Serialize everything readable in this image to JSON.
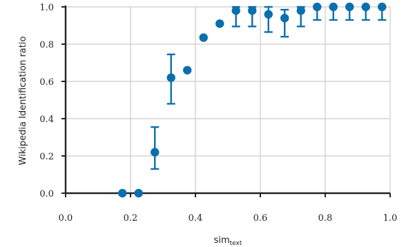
{
  "chart_data": {
    "type": "scatter",
    "title": "",
    "xlabel_main": "sim",
    "xlabel_sub": "text",
    "ylabel": "Wikipedia Identification ratio",
    "xlim": [
      0.0,
      1.0
    ],
    "ylim": [
      0.0,
      1.0
    ],
    "xticks": [
      "0.0",
      "0.2",
      "0.4",
      "0.6",
      "0.8",
      "1.0"
    ],
    "yticks": [
      "0.0",
      "0.2",
      "0.4",
      "0.6",
      "0.8",
      "1.0"
    ],
    "grid": true,
    "color": "#0b6fad",
    "points": [
      {
        "x": 0.175,
        "y": 0.0
      },
      {
        "x": 0.225,
        "y": 0.0
      },
      {
        "x": 0.275,
        "y": 0.22,
        "err_low": 0.13,
        "err_high": 0.355
      },
      {
        "x": 0.325,
        "y": 0.62,
        "err_low": 0.48,
        "err_high": 0.745
      },
      {
        "x": 0.375,
        "y": 0.66
      },
      {
        "x": 0.425,
        "y": 0.835
      },
      {
        "x": 0.475,
        "y": 0.91
      },
      {
        "x": 0.525,
        "y": 0.98,
        "err_low": 0.895,
        "err_high": 1.0
      },
      {
        "x": 0.575,
        "y": 0.98,
        "err_low": 0.895,
        "err_high": 1.0
      },
      {
        "x": 0.625,
        "y": 0.96,
        "err_low": 0.865,
        "err_high": 1.0
      },
      {
        "x": 0.675,
        "y": 0.94,
        "err_low": 0.84,
        "err_high": 0.985
      },
      {
        "x": 0.725,
        "y": 0.98,
        "err_low": 0.895,
        "err_high": 1.0
      },
      {
        "x": 0.775,
        "y": 1.0,
        "err_low": 0.93,
        "err_high": 1.0
      },
      {
        "x": 0.825,
        "y": 1.0,
        "err_low": 0.93,
        "err_high": 1.0
      },
      {
        "x": 0.875,
        "y": 1.0,
        "err_low": 0.93,
        "err_high": 1.0
      },
      {
        "x": 0.925,
        "y": 1.0,
        "err_low": 0.93,
        "err_high": 1.0
      },
      {
        "x": 0.975,
        "y": 1.0,
        "err_low": 0.93,
        "err_high": 1.0
      }
    ]
  }
}
